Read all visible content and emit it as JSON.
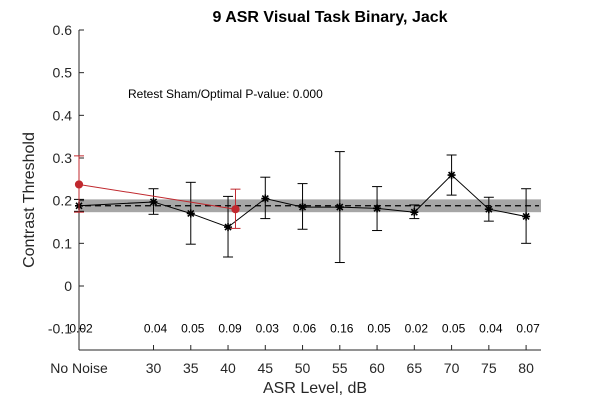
{
  "chart_data": {
    "type": "line",
    "title": "9 ASR Visual Task Binary, Jack",
    "xlabel": "ASR Level, dB",
    "ylabel": "Contrast Threshold",
    "xlim": [
      20,
      82
    ],
    "ylim": [
      -0.15,
      0.6
    ],
    "x_ticks": [
      {
        "x": 20,
        "label": "No Noise"
      },
      {
        "x": 30,
        "label": "30"
      },
      {
        "x": 35,
        "label": "35"
      },
      {
        "x": 40,
        "label": "40"
      },
      {
        "x": 45,
        "label": "45"
      },
      {
        "x": 50,
        "label": "50"
      },
      {
        "x": 55,
        "label": "55"
      },
      {
        "x": 60,
        "label": "60"
      },
      {
        "x": 65,
        "label": "65"
      },
      {
        "x": 70,
        "label": "70"
      },
      {
        "x": 75,
        "label": "75"
      },
      {
        "x": 80,
        "label": "80"
      }
    ],
    "y_ticks": [
      {
        "y": -0.1,
        "label": "-0.1"
      },
      {
        "y": 0,
        "label": "0"
      },
      {
        "y": 0.1,
        "label": "0.1"
      },
      {
        "y": 0.2,
        "label": "0.2"
      },
      {
        "y": 0.3,
        "label": "0.3"
      },
      {
        "y": 0.4,
        "label": "0.4"
      },
      {
        "y": 0.5,
        "label": "0.5"
      },
      {
        "y": 0.6,
        "label": "0.6"
      }
    ],
    "annotation": "Retest Sham/Optimal P-value: 0.000",
    "reference_band": {
      "y_low": 0.173,
      "y_high": 0.203,
      "color": "#a6a6a6"
    },
    "reference_line": {
      "y": 0.188,
      "dashed": true,
      "color": "#000000"
    },
    "series": [
      {
        "color": "#000000",
        "marker": "asterisk",
        "x": [
          20,
          30,
          35,
          40,
          45,
          50,
          55,
          60,
          65,
          70,
          75,
          80
        ],
        "y": [
          0.188,
          0.197,
          0.17,
          0.138,
          0.205,
          0.185,
          0.185,
          0.182,
          0.173,
          0.26,
          0.18,
          0.163
        ],
        "err_low": [
          0.175,
          0.168,
          0.098,
          0.068,
          0.158,
          0.133,
          0.055,
          0.13,
          0.158,
          0.213,
          0.152,
          0.1
        ],
        "err_high": [
          0.203,
          0.228,
          0.243,
          0.21,
          0.255,
          0.24,
          0.315,
          0.233,
          0.19,
          0.307,
          0.208,
          0.228
        ]
      },
      {
        "color": "#c0282e",
        "marker": "circle",
        "x": [
          20,
          41
        ],
        "y": [
          0.238,
          0.18
        ],
        "err_low": [
          0.173,
          0.135
        ],
        "err_high": [
          0.305,
          0.227
        ]
      }
    ],
    "p_values": [
      {
        "x": 20,
        "label": "0.02"
      },
      {
        "x": 30,
        "label": "0.04"
      },
      {
        "x": 35,
        "label": "0.05"
      },
      {
        "x": 40,
        "label": "0.09"
      },
      {
        "x": 45,
        "label": "0.03"
      },
      {
        "x": 50,
        "label": "0.06"
      },
      {
        "x": 55,
        "label": "0.16"
      },
      {
        "x": 60,
        "label": "0.05"
      },
      {
        "x": 65,
        "label": "0.02"
      },
      {
        "x": 70,
        "label": "0.05"
      },
      {
        "x": 75,
        "label": "0.04"
      },
      {
        "x": 80,
        "label": "0.07"
      }
    ],
    "p_value_row_y": -0.1
  }
}
